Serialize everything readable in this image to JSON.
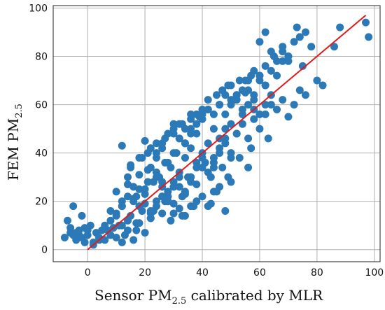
{
  "chart_data": {
    "type": "scatter",
    "title": "",
    "xlabel": "Sensor PM",
    "xlabel_sub": "2.5",
    "xlabel_suffix": " calibrated by MLR",
    "ylabel": "FEM PM",
    "ylabel_sub": "2.5",
    "xlim": [
      -12,
      102
    ],
    "ylim": [
      -5,
      101
    ],
    "xticks": [
      0,
      20,
      40,
      60,
      80,
      100
    ],
    "yticks": [
      0,
      20,
      40,
      60,
      80,
      100
    ],
    "grid": true,
    "colors": {
      "points": "#2b79b6",
      "line": "#e31a1c"
    },
    "reference_line": {
      "x": [
        0,
        97
      ],
      "y": [
        0,
        97
      ]
    },
    "series": [
      {
        "x": [
          -8,
          -6,
          -5,
          -4,
          -3,
          -2,
          -1,
          0,
          1,
          2,
          3,
          4,
          5,
          -7,
          -5,
          -3,
          -1,
          0,
          2,
          4,
          -6,
          -2,
          -4,
          6,
          7,
          8,
          9,
          10,
          11,
          12,
          13,
          14,
          15,
          16,
          17,
          18,
          19,
          20,
          21,
          22,
          6,
          8,
          10,
          12,
          14,
          16,
          18,
          20,
          22,
          24,
          26,
          8,
          10,
          12,
          14,
          16,
          18,
          20,
          22,
          10,
          12,
          14,
          16,
          18,
          20,
          22,
          24,
          26,
          28,
          30,
          12,
          14,
          15,
          17,
          19,
          21,
          23,
          24,
          25,
          26,
          27,
          28,
          29,
          30,
          31,
          32,
          33,
          34,
          35,
          36,
          24,
          26,
          28,
          30,
          32,
          34,
          36,
          38,
          40,
          22,
          24,
          26,
          28,
          30,
          32,
          34,
          36,
          38,
          20,
          22,
          24,
          26,
          28,
          30,
          32,
          34,
          36,
          38,
          40,
          42,
          28,
          30,
          32,
          34,
          36,
          38,
          40,
          42,
          44,
          46,
          48,
          50,
          30,
          32,
          34,
          36,
          38,
          40,
          42,
          44,
          46,
          48,
          50,
          52,
          36,
          38,
          40,
          42,
          44,
          46,
          48,
          50,
          52,
          54,
          56,
          58,
          40,
          42,
          44,
          46,
          48,
          50,
          52,
          54,
          56,
          58,
          60,
          62,
          44,
          46,
          48,
          50,
          52,
          54,
          56,
          58,
          60,
          62,
          64,
          50,
          52,
          54,
          56,
          58,
          60,
          62,
          64,
          66,
          68,
          70,
          55,
          58,
          60,
          62,
          64,
          66,
          68,
          70,
          72,
          74,
          76,
          60,
          62,
          64,
          66,
          68,
          70,
          72,
          74,
          76,
          38,
          40,
          42,
          44,
          46,
          48,
          36,
          34,
          32,
          30,
          28,
          26,
          45,
          47,
          49,
          51,
          53,
          55,
          57,
          15,
          18,
          21,
          24,
          27,
          30,
          33,
          36,
          39,
          42,
          60,
          62,
          65,
          68,
          70,
          73,
          75,
          78,
          80,
          82,
          86,
          88,
          97,
          98,
          49,
          50,
          56,
          45,
          43,
          41,
          12,
          17,
          23,
          27,
          29,
          33,
          37,
          43,
          47,
          53,
          57,
          63
        ],
        "y": [
          5,
          7,
          6,
          4,
          8,
          5,
          9,
          6,
          10,
          3,
          7,
          4,
          8,
          12,
          18,
          6,
          3,
          8,
          2,
          5,
          9,
          14,
          7,
          4,
          8,
          12,
          9,
          15,
          10,
          18,
          6,
          22,
          14,
          20,
          11,
          25,
          16,
          19,
          28,
          13,
          10,
          16,
          14,
          20,
          12,
          26,
          18,
          23,
          16,
          30,
          22,
          6,
          5,
          3,
          8,
          4,
          11,
          7,
          13,
          24,
          18,
          27,
          21,
          31,
          25,
          15,
          32,
          28,
          20,
          26,
          43,
          30,
          35,
          22,
          38,
          33,
          28,
          20,
          30,
          26,
          36,
          24,
          34,
          28,
          40,
          32,
          22,
          38,
          30,
          42,
          18,
          15,
          22,
          19,
          26,
          23,
          30,
          27,
          34,
          34,
          38,
          42,
          36,
          40,
          46,
          44,
          48,
          52,
          45,
          42,
          40,
          44,
          48,
          52,
          46,
          50,
          54,
          48,
          56,
          58,
          22,
          26,
          30,
          24,
          28,
          34,
          38,
          32,
          36,
          42,
          46,
          40,
          48,
          52,
          44,
          50,
          56,
          54,
          58,
          50,
          60,
          56,
          62,
          64,
          30,
          36,
          40,
          44,
          38,
          46,
          50,
          52,
          48,
          56,
          60,
          58,
          58,
          62,
          56,
          60,
          64,
          68,
          62,
          66,
          70,
          64,
          72,
          68,
          34,
          40,
          44,
          38,
          48,
          52,
          46,
          54,
          50,
          56,
          60,
          60,
          64,
          58,
          66,
          62,
          70,
          68,
          74,
          72,
          78,
          80,
          70,
          74,
          72,
          76,
          82,
          78,
          84,
          80,
          86,
          88,
          90,
          56,
          60,
          64,
          58,
          62,
          55,
          60,
          66,
          64,
          20,
          22,
          18,
          24,
          26,
          16,
          18,
          14,
          17,
          15,
          20,
          22,
          64,
          66,
          68,
          62,
          70,
          65,
          72,
          34,
          38,
          40,
          44,
          46,
          50,
          52,
          56,
          55,
          58,
          86,
          90,
          80,
          82,
          78,
          92,
          76,
          84,
          70,
          68,
          84,
          92,
          94,
          88,
          30,
          28,
          34,
          24,
          19,
          36,
          10,
          8,
          16,
          20,
          12,
          14,
          18,
          30,
          34,
          38,
          42,
          46
        ]
      }
    ]
  }
}
